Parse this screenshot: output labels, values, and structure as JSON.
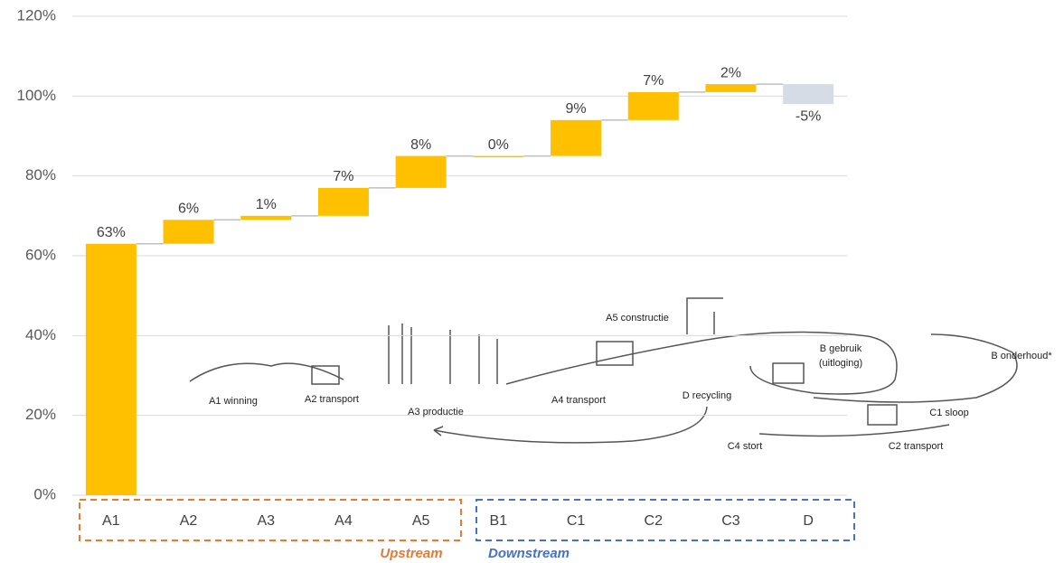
{
  "chart_data": {
    "type": "waterfall",
    "categories": [
      "A1",
      "A2",
      "A3",
      "A4",
      "A5",
      "B1",
      "C1",
      "C2",
      "C3",
      "D"
    ],
    "values": [
      63,
      6,
      1,
      7,
      8,
      0,
      9,
      7,
      2,
      -5
    ],
    "value_labels": [
      "63%",
      "6%",
      "1%",
      "7%",
      "8%",
      "0%",
      "9%",
      "7%",
      "2%",
      "-5%"
    ],
    "color": "#ffc000",
    "negative_color": "#d6dce5",
    "ylim": [
      0,
      120
    ],
    "yticks": [
      {
        "value": 0,
        "label": "0%"
      },
      {
        "value": 20,
        "label": "20%"
      },
      {
        "value": 40,
        "label": "40%"
      },
      {
        "value": 60,
        "label": "60%"
      },
      {
        "value": 80,
        "label": "80%"
      },
      {
        "value": 100,
        "label": "100%"
      },
      {
        "value": 120,
        "label": "120%"
      }
    ],
    "grid": true,
    "groups": [
      {
        "label": "Upstream",
        "color": "#e07b39"
      },
      {
        "label": "Downstream",
        "color": "#4472c4"
      }
    ],
    "annotations": [
      "A1 winning",
      "A2 transport",
      "A3 productie",
      "A4 transport",
      "A5 constructie",
      "B gebruik",
      "(uitloging)",
      "B onderhoud*",
      "C1 sloop",
      "C2 transport",
      "C4 stort",
      "D recycling"
    ]
  }
}
